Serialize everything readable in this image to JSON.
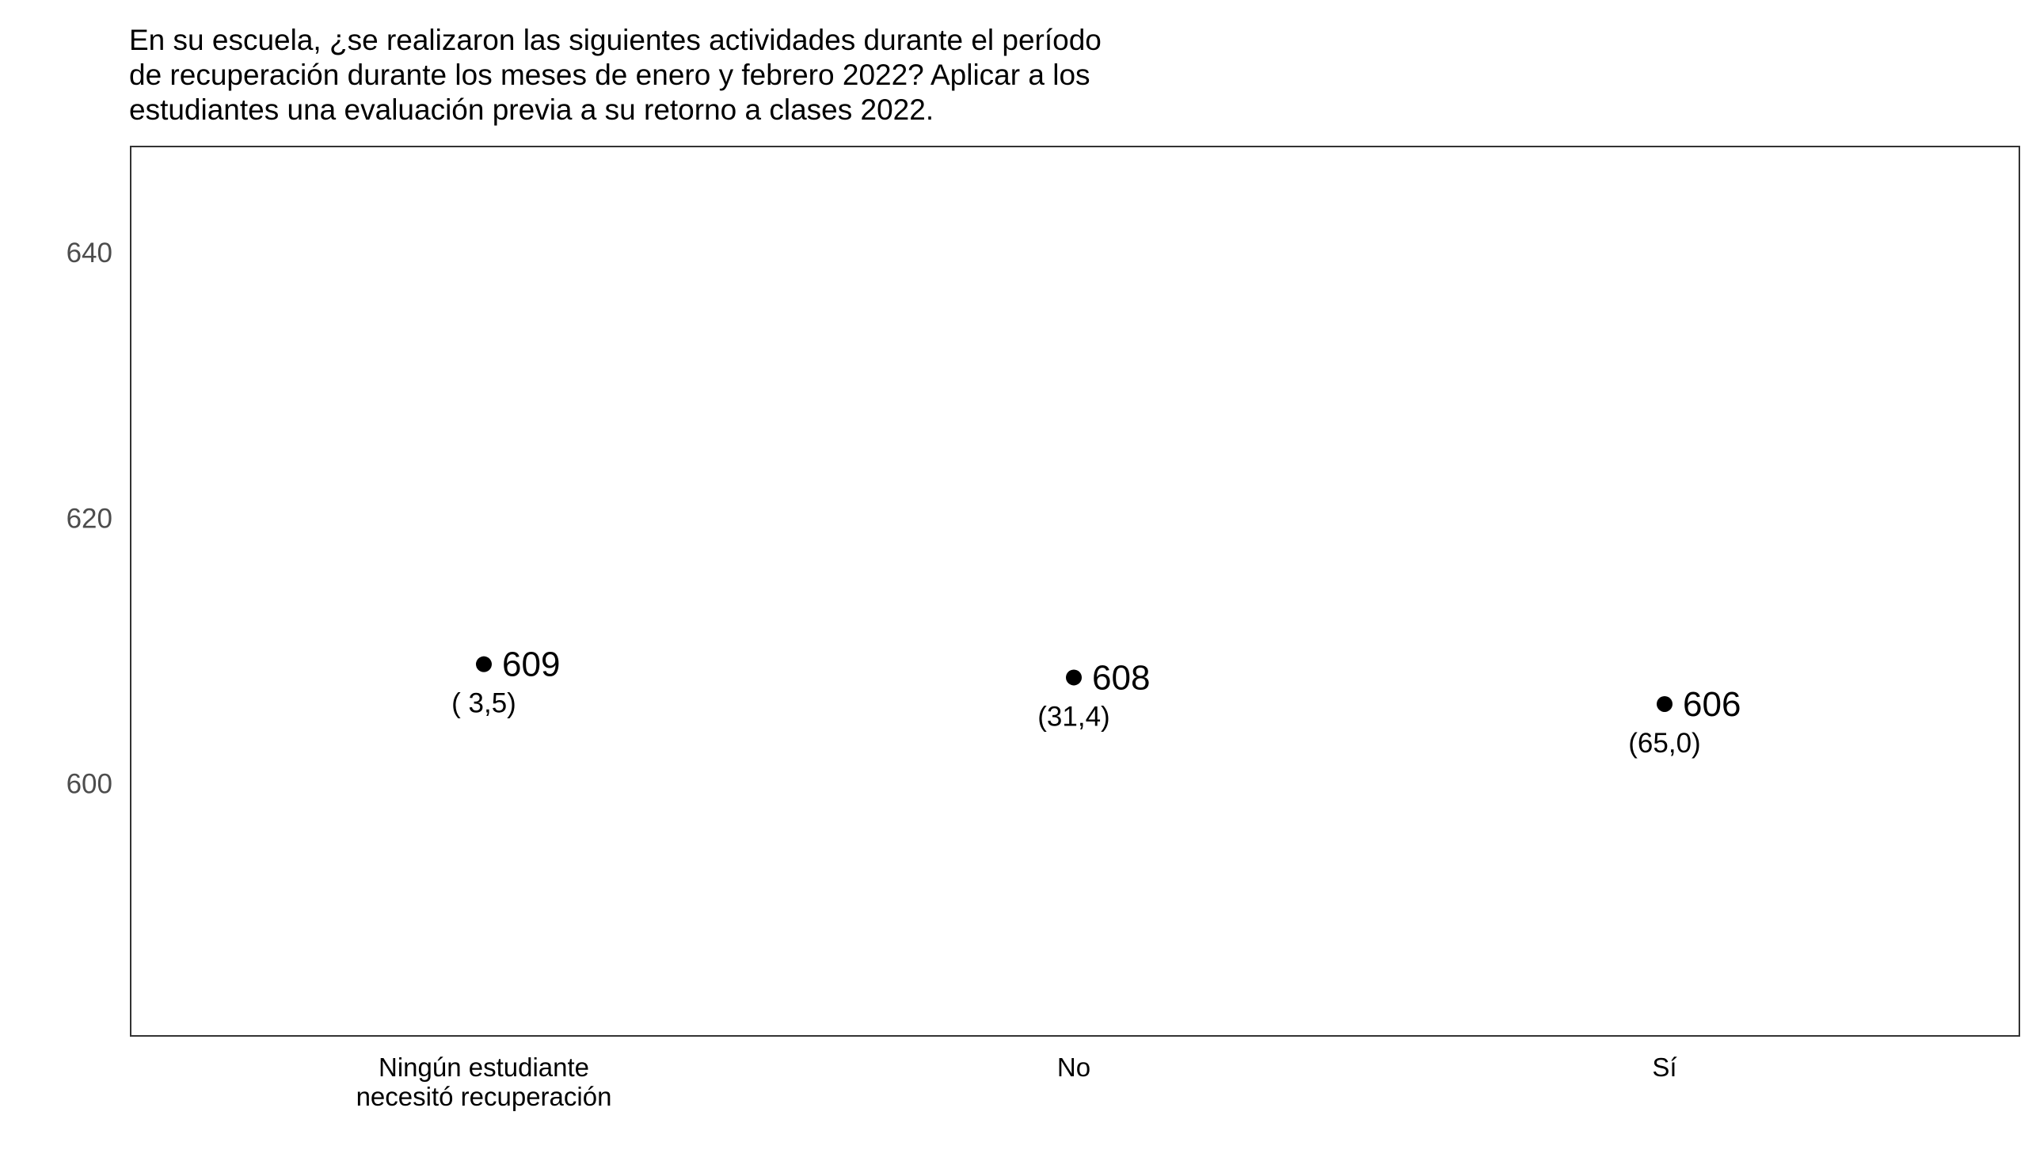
{
  "chart_data": {
    "type": "scatter",
    "title_lines": [
      "En su escuela, ¿se realizaron las siguientes actividades durante el período",
      "de recuperación durante los meses de enero y febrero 2022? Aplicar a los",
      "estudiantes una evaluación previa a su retorno a clases 2022."
    ],
    "categories": [
      [
        "Ningún estudiante",
        "necesitó recuperación"
      ],
      [
        "No"
      ],
      [
        "Sí"
      ]
    ],
    "values": [
      609,
      608,
      606
    ],
    "value_labels": [
      "609",
      "608",
      "606"
    ],
    "percent_labels": [
      "( 3,5)",
      "(31,4)",
      "(65,0)"
    ],
    "yticks": [
      600,
      620,
      640
    ],
    "ytick_labels": [
      "600",
      "620",
      "640"
    ],
    "ylim": [
      581,
      648
    ],
    "grid": false,
    "colors": {
      "point": "#000000",
      "frame": "#333333",
      "tick_text": "#4d4d4d"
    }
  }
}
